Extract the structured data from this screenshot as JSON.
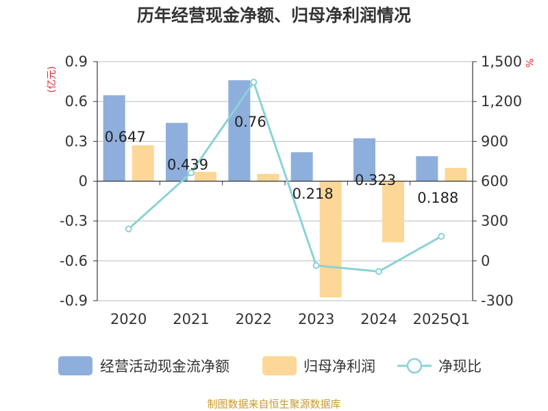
{
  "colors": {
    "ocf": "#8EAFDC",
    "np": "#FDD797",
    "ratio": "#89D2D6",
    "grid": "#BBBBBB",
    "axis": "#333333",
    "unit": "#E8262D",
    "source": "#C99A2E"
  },
  "chart_data": {
    "type": "bar",
    "title": "历年经营现金净额、归母净利润情况",
    "categories": [
      "2020",
      "2021",
      "2022",
      "2023",
      "2024",
      "2025Q1"
    ],
    "y_left": {
      "unit": "(亿元)",
      "range": [
        -0.9,
        0.9
      ],
      "ticks": [
        0.9,
        0.6,
        0.3,
        0,
        -0.3,
        -0.6,
        -0.9
      ],
      "tick_labels": [
        "0.9",
        "0.6",
        "0.3",
        "0",
        "-0.3",
        "-0.6",
        "-0.9"
      ]
    },
    "y_right": {
      "unit": "%",
      "range": [
        -300,
        1500
      ],
      "ticks": [
        1500,
        1200,
        900,
        600,
        300,
        0,
        -300
      ],
      "tick_labels": [
        "1,500",
        "1,200",
        "900",
        "600",
        "300",
        "0",
        "-300"
      ]
    },
    "series": [
      {
        "name": "经营活动现金流净额",
        "kind": "bar",
        "axis": "left",
        "values": [
          0.647,
          0.439,
          0.76,
          0.218,
          0.323,
          0.188
        ],
        "labels": [
          "0.647",
          "0.439",
          "0.76",
          "0.218",
          "0.323",
          "0.188"
        ]
      },
      {
        "name": "归母净利润",
        "kind": "bar",
        "axis": "left",
        "values": [
          0.27,
          0.07,
          0.055,
          -0.875,
          -0.46,
          0.1
        ]
      },
      {
        "name": "净现比",
        "kind": "line",
        "axis": "right",
        "values": [
          240,
          663,
          1345,
          -35,
          -80,
          185
        ]
      }
    ],
    "grid": true,
    "legend": "bottom"
  },
  "footer": {
    "source": "制图数据来自恒生聚源数据库"
  }
}
